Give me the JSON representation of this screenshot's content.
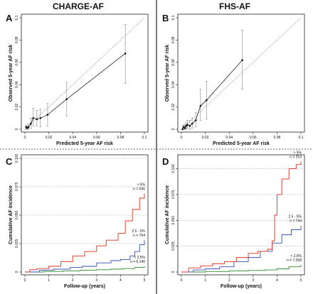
{
  "titles": {
    "left": "CHARGE-AF",
    "right": "FHS-AF"
  },
  "chart_data": [
    {
      "panel": "A",
      "type": "scatter",
      "xlabel": "Predicted 5-year AF risk",
      "ylabel": "Observed 5-year AF risk",
      "xlim": [
        0,
        0.1
      ],
      "ylim": [
        0,
        0.1
      ],
      "x_ticks": [
        "0",
        "0.02",
        "0.04",
        "0.06",
        "0.08",
        "0.1"
      ],
      "y_ticks": [
        "0",
        "0.02",
        "0.04",
        "0.06",
        "0.08",
        "0.1"
      ],
      "reference_line": "dotted diagonal y = x",
      "points": [
        {
          "x": 0.001,
          "y": 0.002,
          "lo": 0.0,
          "hi": 0.004
        },
        {
          "x": 0.002,
          "y": 0.001,
          "lo": 0.0,
          "hi": 0.003
        },
        {
          "x": 0.003,
          "y": 0.002,
          "lo": 0.0,
          "hi": 0.005
        },
        {
          "x": 0.005,
          "y": 0.005,
          "lo": 0.001,
          "hi": 0.01
        },
        {
          "x": 0.007,
          "y": 0.01,
          "lo": 0.003,
          "hi": 0.019
        },
        {
          "x": 0.01,
          "y": 0.009,
          "lo": 0.003,
          "hi": 0.017
        },
        {
          "x": 0.013,
          "y": 0.01,
          "lo": 0.002,
          "hi": 0.018
        },
        {
          "x": 0.019,
          "y": 0.013,
          "lo": 0.003,
          "hi": 0.023
        },
        {
          "x": 0.035,
          "y": 0.027,
          "lo": 0.012,
          "hi": 0.042
        },
        {
          "x": 0.084,
          "y": 0.068,
          "lo": 0.041,
          "hi": 0.094
        }
      ]
    },
    {
      "panel": "B",
      "type": "scatter",
      "xlabel": "Predicted 5-year AF risk",
      "ylabel": "Observed 5-year AF risk",
      "xlim": [
        0,
        0.1
      ],
      "ylim": [
        0,
        0.1
      ],
      "x_ticks": [
        "0",
        "0.02",
        "0.04",
        "0.06",
        "0.08",
        "0.1"
      ],
      "y_ticks": [
        "0",
        "0.02",
        "0.04",
        "0.06",
        "0.08",
        "0.1"
      ],
      "reference_line": "dotted diagonal y = x",
      "points": [
        {
          "x": 0.001,
          "y": 0.0,
          "lo": 0.0,
          "hi": 0.003
        },
        {
          "x": 0.002,
          "y": 0.002,
          "lo": 0.0,
          "hi": 0.004
        },
        {
          "x": 0.003,
          "y": 0.001,
          "lo": 0.0,
          "hi": 0.004
        },
        {
          "x": 0.004,
          "y": 0.003,
          "lo": 0.0,
          "hi": 0.006
        },
        {
          "x": 0.005,
          "y": 0.004,
          "lo": 0.001,
          "hi": 0.008
        },
        {
          "x": 0.007,
          "y": 0.003,
          "lo": 0.0,
          "hi": 0.008
        },
        {
          "x": 0.009,
          "y": 0.005,
          "lo": 0.001,
          "hi": 0.01
        },
        {
          "x": 0.012,
          "y": 0.008,
          "lo": 0.002,
          "hi": 0.015
        },
        {
          "x": 0.016,
          "y": 0.021,
          "lo": 0.008,
          "hi": 0.036
        },
        {
          "x": 0.021,
          "y": 0.026,
          "lo": 0.009,
          "hi": 0.043
        },
        {
          "x": 0.051,
          "y": 0.062,
          "lo": 0.036,
          "hi": 0.089
        }
      ]
    },
    {
      "panel": "C",
      "type": "line",
      "xlabel": "Follow-up (years)",
      "ylabel": "Cumulative AF incidence",
      "xlim": [
        0,
        5
      ],
      "ylim": [
        0,
        0.1
      ],
      "x_ticks": [
        "0",
        "1",
        "2",
        "3",
        "4",
        "5"
      ],
      "y_ticks": [
        "0",
        "0.025",
        "0.050",
        "0.075",
        "0.100"
      ],
      "grid": "horizontal dotted lines at 0.025, 0.050, 0.075, 0.100",
      "series": [
        {
          "name": "< 2.5%",
          "n": "n = 6,140",
          "color": "#2e8b2e",
          "x": [
            0,
            0.8,
            1.6,
            2.3,
            3.0,
            3.6,
            4.1,
            4.6,
            5.0
          ],
          "y": [
            0,
            0.0005,
            0.001,
            0.0015,
            0.002,
            0.0025,
            0.003,
            0.004,
            0.005
          ]
        },
        {
          "name": "2.5 - 5%",
          "n": "n = 764",
          "color": "#3050b8",
          "x": [
            0,
            0.6,
            1.2,
            1.9,
            2.4,
            3.0,
            3.6,
            4.0,
            4.4,
            4.6,
            4.8,
            5.0
          ],
          "y": [
            0,
            0.0015,
            0.0025,
            0.004,
            0.005,
            0.008,
            0.01,
            0.011,
            0.014,
            0.018,
            0.024,
            0.028
          ]
        },
        {
          "name": "> 5%",
          "n": "n = 646",
          "color": "#e03020",
          "x": [
            0,
            0.2,
            0.5,
            1.0,
            1.5,
            2.0,
            2.5,
            3.0,
            3.4,
            3.9,
            4.2,
            4.5,
            4.8,
            5.0
          ],
          "y": [
            0,
            0.002,
            0.003,
            0.005,
            0.009,
            0.014,
            0.018,
            0.023,
            0.028,
            0.034,
            0.045,
            0.055,
            0.065,
            0.069
          ]
        }
      ]
    },
    {
      "panel": "D",
      "type": "line",
      "xlabel": "Follow-up (years)",
      "ylabel": "Cumulative AF incidence",
      "xlim": [
        0,
        5
      ],
      "ylim": [
        0,
        0.11
      ],
      "x_ticks": [
        "0",
        "1",
        "2",
        "3",
        "4",
        "5"
      ],
      "y_ticks": [
        "0",
        "0.025",
        "0.050",
        "0.075",
        "0.100"
      ],
      "grid": "horizontal dotted lines at 0.025, 0.050, 0.075, 0.100",
      "series": [
        {
          "name": "< 2.5%",
          "n": "n = 7,268",
          "color": "#2e8b2e",
          "x": [
            0,
            1.0,
            2.0,
            2.8,
            3.5,
            4.0,
            4.5,
            5.0
          ],
          "y": [
            0,
            0.0005,
            0.001,
            0.0015,
            0.002,
            0.003,
            0.005,
            0.007
          ]
        },
        {
          "name": "2.5 - 5%",
          "n": "n = 744",
          "color": "#3050b8",
          "x": [
            0,
            0.5,
            1.0,
            1.6,
            2.2,
            2.8,
            3.3,
            3.8,
            4.2,
            4.6,
            5.0
          ],
          "y": [
            0,
            0.002,
            0.003,
            0.005,
            0.01,
            0.014,
            0.02,
            0.028,
            0.036,
            0.041,
            0.045
          ]
        },
        {
          "name": "> 5%",
          "n": "n = 253",
          "color": "#e03020",
          "x": [
            0,
            0.3,
            0.8,
            1.3,
            1.8,
            2.3,
            2.8,
            3.2,
            3.6,
            3.8,
            3.9,
            4.0,
            4.2,
            4.5,
            4.8,
            5.0
          ],
          "y": [
            0,
            0.004,
            0.006,
            0.008,
            0.01,
            0.014,
            0.018,
            0.02,
            0.022,
            0.03,
            0.055,
            0.075,
            0.09,
            0.1,
            0.104,
            0.107
          ]
        }
      ]
    }
  ]
}
